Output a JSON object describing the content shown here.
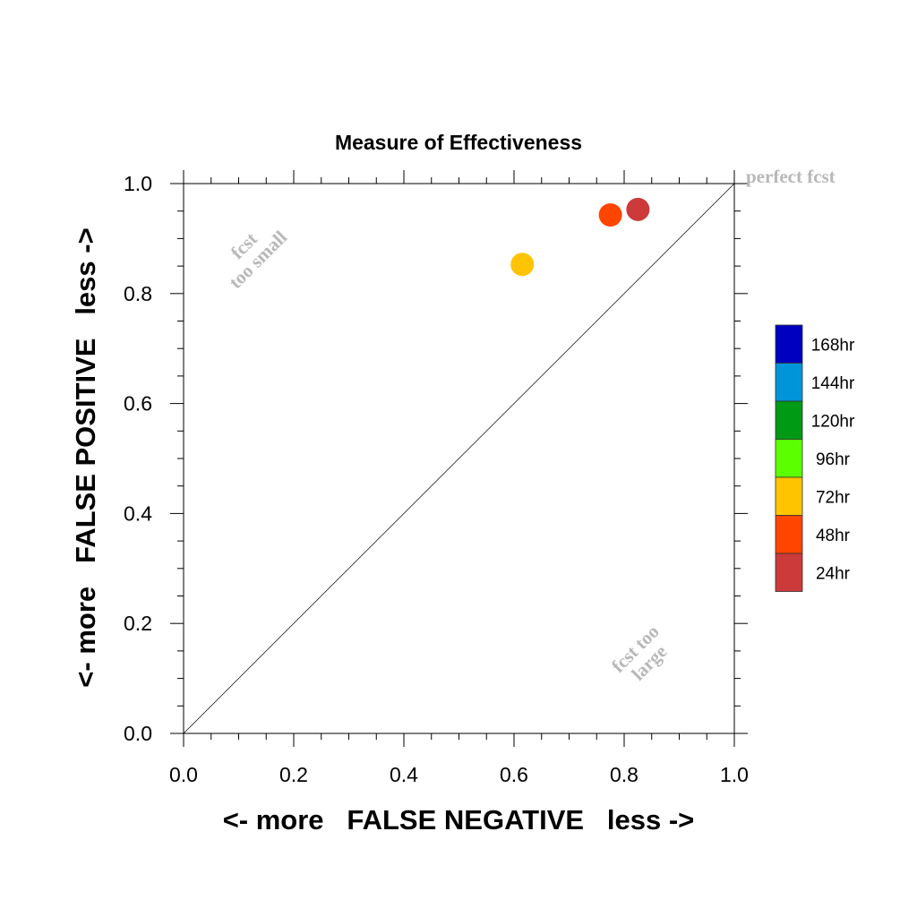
{
  "chart_data": {
    "type": "scatter",
    "title": "Measure of Effectiveness",
    "xlabel": "<- more   FALSE NEGATIVE   less ->",
    "ylabel": "<- more   FALSE POSITIVE   less ->",
    "xlim": [
      0,
      1
    ],
    "ylim": [
      0,
      1
    ],
    "xticks": [
      "0.0",
      "0.2",
      "0.4",
      "0.6",
      "0.8",
      "1.0"
    ],
    "yticks": [
      "0.0",
      "0.2",
      "0.4",
      "0.6",
      "0.8",
      "1.0"
    ],
    "grid": false,
    "reference_line": {
      "from": [
        0,
        0
      ],
      "to": [
        1,
        1
      ]
    },
    "annotations": {
      "perfect": "perfect fcst",
      "small_line1": "fcst",
      "small_line2": "too small",
      "large_line1": "fcst too",
      "large_line2": "large"
    },
    "legend": {
      "placement": "right",
      "entries": [
        {
          "name": "168hr",
          "color": "#0000c0"
        },
        {
          "name": "144hr",
          "color": "#0095d8"
        },
        {
          "name": "120hr",
          "color": "#009a15"
        },
        {
          "name": "96hr",
          "color": "#5cff00"
        },
        {
          "name": "72hr",
          "color": "#ffc400"
        },
        {
          "name": "48hr",
          "color": "#ff4500"
        },
        {
          "name": "24hr",
          "color": "#cc3a3a"
        }
      ]
    },
    "series": [
      {
        "name": "24hr",
        "color": "#cc3a3a",
        "x": 0.825,
        "y": 0.953
      },
      {
        "name": "48hr",
        "color": "#ff4500",
        "x": 0.775,
        "y": 0.943
      },
      {
        "name": "72hr",
        "color": "#ffc400",
        "x": 0.615,
        "y": 0.853
      }
    ]
  }
}
